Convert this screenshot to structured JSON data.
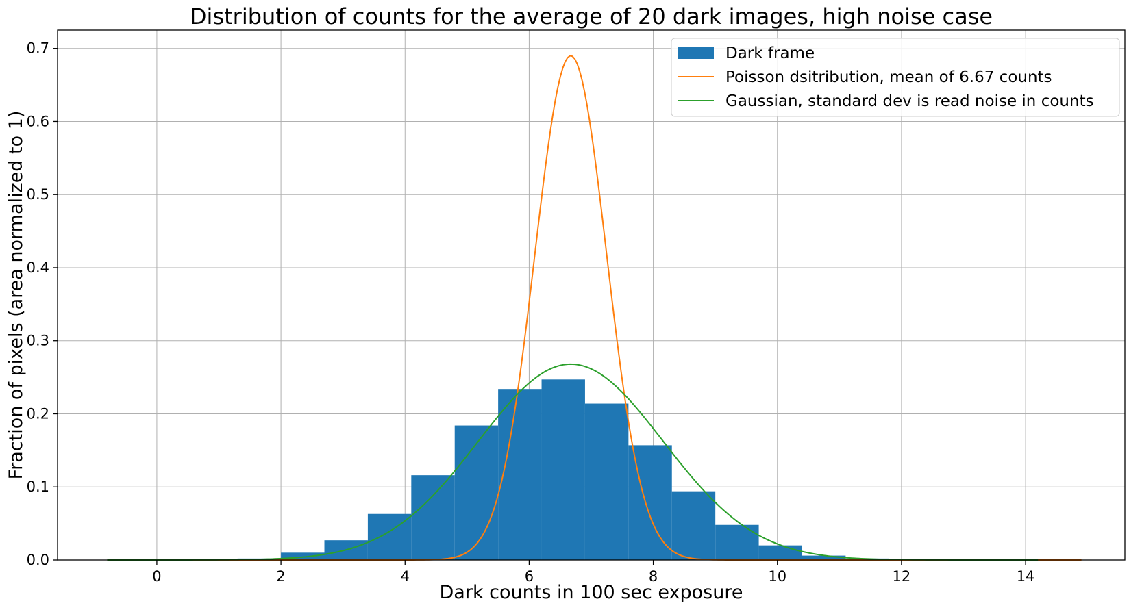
{
  "chart_data": {
    "type": "bar",
    "title": "Distribution of counts for the average of 20 dark images, high noise case",
    "xlabel": "Dark counts in 100 sec exposure",
    "ylabel": "Fraction of pixels (area normalized to 1)",
    "xlim": [
      -1.6,
      15.6
    ],
    "ylim": [
      0,
      0.725
    ],
    "xticks": [
      0,
      2,
      4,
      6,
      8,
      10,
      12,
      14
    ],
    "yticks": [
      0.0,
      0.1,
      0.2,
      0.3,
      0.4,
      0.5,
      0.6,
      0.7
    ],
    "grid": true,
    "legend_position": "top-right",
    "histogram": {
      "name": "Dark frame",
      "color": "#1f77b4",
      "bin_edges": [
        -0.8,
        -0.1,
        0.6,
        1.3,
        2.0,
        2.7,
        3.4,
        4.1,
        4.8,
        5.5,
        6.2,
        6.9,
        7.6,
        8.3,
        9.0,
        9.7,
        10.4,
        11.1,
        11.8,
        12.5,
        13.2,
        13.9,
        14.6
      ],
      "values": [
        0.0,
        0.0,
        0.0,
        0.002,
        0.01,
        0.027,
        0.063,
        0.116,
        0.184,
        0.234,
        0.247,
        0.214,
        0.157,
        0.094,
        0.048,
        0.02,
        0.006,
        0.002,
        0.0,
        0.0,
        0.0,
        0.0
      ]
    },
    "series": [
      {
        "name": "Poisson dsitribution, mean of  6.67 counts",
        "color": "#ff7f0e",
        "function": "gaussian",
        "mean": 6.67,
        "peak": 0.69,
        "x_range": [
          -0.8,
          14.9
        ]
      },
      {
        "name": "Gaussian, standard dev is read noise in counts",
        "color": "#2ca02c",
        "function": "gaussian",
        "mean": 6.67,
        "peak": 0.268,
        "x_range": [
          -0.8,
          14.2
        ]
      }
    ]
  }
}
